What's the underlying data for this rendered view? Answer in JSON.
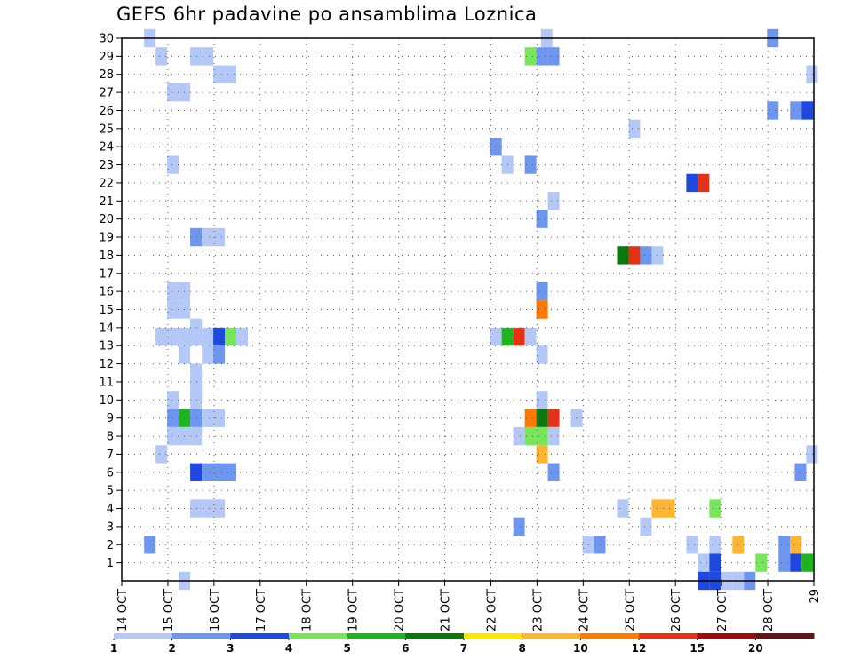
{
  "chart_data": {
    "type": "heatmap",
    "title": "GEFS 6hr padavine po ansamblima Loznica",
    "xlabel": "",
    "ylabel": "",
    "x_ticks": [
      "14 OCT",
      "15 OCT",
      "16 OCT",
      "17 OCT",
      "18 OCT",
      "19 OCT",
      "20 OCT",
      "21 OCT",
      "22 OCT",
      "23 OCT",
      "24 OCT",
      "25 OCT",
      "26 OCT",
      "27 OCT",
      "28 OCT",
      "29"
    ],
    "y_ticks": [
      1,
      2,
      3,
      4,
      5,
      6,
      7,
      8,
      9,
      10,
      11,
      12,
      13,
      14,
      15,
      16,
      17,
      18,
      19,
      20,
      21,
      22,
      23,
      24,
      25,
      26,
      27,
      28,
      29,
      30
    ],
    "xlim": [
      0,
      15
    ],
    "ylim": [
      0,
      30
    ],
    "grid": true,
    "colorbar": {
      "labels": [
        "1",
        "2",
        "3",
        "4",
        "5",
        "6",
        "7",
        "8",
        "10",
        "12",
        "15",
        "20"
      ],
      "colors": [
        "#b4c8f8",
        "#6e96ef",
        "#1e48e0",
        "#78e65a",
        "#1eb41e",
        "#0a780a",
        "#ffe600",
        "#ffb432",
        "#ff7800",
        "#e63214",
        "#a50a0a",
        "#641414"
      ]
    },
    "cells": [
      {
        "x": 0.6,
        "y": 30,
        "v": 1.5
      },
      {
        "x": 14.1,
        "y": 30,
        "v": 2.5
      },
      {
        "x": 9.2,
        "y": 30,
        "v": 1.5
      },
      {
        "x": 0.85,
        "y": 29,
        "v": 1.5
      },
      {
        "x": 1.6,
        "y": 29,
        "v": 1.5
      },
      {
        "x": 1.85,
        "y": 29,
        "v": 1.5
      },
      {
        "x": 8.85,
        "y": 29,
        "v": 4.5
      },
      {
        "x": 9.1,
        "y": 29,
        "v": 2.5
      },
      {
        "x": 9.35,
        "y": 29,
        "v": 2.5
      },
      {
        "x": 2.1,
        "y": 28,
        "v": 1.5
      },
      {
        "x": 2.35,
        "y": 28,
        "v": 1.5
      },
      {
        "x": 14.95,
        "y": 28,
        "v": 1.5
      },
      {
        "x": 1.1,
        "y": 27,
        "v": 1.5
      },
      {
        "x": 1.35,
        "y": 27,
        "v": 1.5
      },
      {
        "x": 14.1,
        "y": 26,
        "v": 2.5
      },
      {
        "x": 14.6,
        "y": 26,
        "v": 2.5
      },
      {
        "x": 14.85,
        "y": 26,
        "v": 3.5
      },
      {
        "x": 11.1,
        "y": 25,
        "v": 1.5
      },
      {
        "x": 8.1,
        "y": 24,
        "v": 2.5
      },
      {
        "x": 1.1,
        "y": 23,
        "v": 1.5
      },
      {
        "x": 8.35,
        "y": 23,
        "v": 1.5
      },
      {
        "x": 8.85,
        "y": 23,
        "v": 2.5
      },
      {
        "x": 12.35,
        "y": 22,
        "v": 3.5
      },
      {
        "x": 12.6,
        "y": 22,
        "v": 13
      },
      {
        "x": 9.35,
        "y": 21,
        "v": 1.5
      },
      {
        "x": 9.1,
        "y": 20,
        "v": 2.5
      },
      {
        "x": 1.6,
        "y": 19,
        "v": 2.5
      },
      {
        "x": 1.85,
        "y": 19,
        "v": 1.5
      },
      {
        "x": 2.1,
        "y": 19,
        "v": 1.5
      },
      {
        "x": 10.85,
        "y": 18,
        "v": 6.5
      },
      {
        "x": 11.1,
        "y": 18,
        "v": 13
      },
      {
        "x": 11.35,
        "y": 18,
        "v": 2.5
      },
      {
        "x": 11.6,
        "y": 18,
        "v": 1.5
      },
      {
        "x": 1.1,
        "y": 16,
        "v": 1.5
      },
      {
        "x": 1.35,
        "y": 16,
        "v": 1.5
      },
      {
        "x": 9.1,
        "y": 16,
        "v": 2.5
      },
      {
        "x": 1.1,
        "y": 15,
        "v": 1.5
      },
      {
        "x": 1.35,
        "y": 15,
        "v": 1.5
      },
      {
        "x": 9.1,
        "y": 15,
        "v": 11
      },
      {
        "x": 1.6,
        "y": 14,
        "v": 1.5
      },
      {
        "x": 0.85,
        "y": 13.5,
        "v": 1.5
      },
      {
        "x": 1.1,
        "y": 13.5,
        "v": 1.5
      },
      {
        "x": 1.35,
        "y": 13.5,
        "v": 1.5
      },
      {
        "x": 1.6,
        "y": 13.5,
        "v": 1.5
      },
      {
        "x": 1.85,
        "y": 13.5,
        "v": 1.5
      },
      {
        "x": 2.1,
        "y": 13.5,
        "v": 3.5
      },
      {
        "x": 2.35,
        "y": 13.5,
        "v": 4.5
      },
      {
        "x": 2.6,
        "y": 13.5,
        "v": 1.5
      },
      {
        "x": 8.1,
        "y": 13.5,
        "v": 1.5
      },
      {
        "x": 8.35,
        "y": 13.5,
        "v": 5.5
      },
      {
        "x": 8.6,
        "y": 13.5,
        "v": 13
      },
      {
        "x": 8.85,
        "y": 13.5,
        "v": 1.5
      },
      {
        "x": 1.35,
        "y": 12.5,
        "v": 1.5
      },
      {
        "x": 1.85,
        "y": 12.5,
        "v": 1.5
      },
      {
        "x": 2.1,
        "y": 12.5,
        "v": 2.5
      },
      {
        "x": 9.1,
        "y": 12.5,
        "v": 1.5
      },
      {
        "x": 1.6,
        "y": 11.5,
        "v": 1.5
      },
      {
        "x": 1.6,
        "y": 10.5,
        "v": 1.5
      },
      {
        "x": 1.1,
        "y": 10,
        "v": 1.5
      },
      {
        "x": 1.6,
        "y": 10,
        "v": 1.5
      },
      {
        "x": 9.1,
        "y": 10,
        "v": 1.5
      },
      {
        "x": 1.1,
        "y": 9,
        "v": 2.5
      },
      {
        "x": 1.35,
        "y": 9,
        "v": 5.5
      },
      {
        "x": 1.6,
        "y": 9,
        "v": 2.5
      },
      {
        "x": 1.85,
        "y": 9,
        "v": 1.5
      },
      {
        "x": 2.1,
        "y": 9,
        "v": 1.5
      },
      {
        "x": 8.85,
        "y": 9,
        "v": 11
      },
      {
        "x": 9.1,
        "y": 9,
        "v": 6.5
      },
      {
        "x": 9.35,
        "y": 9,
        "v": 13
      },
      {
        "x": 9.85,
        "y": 9,
        "v": 1.5
      },
      {
        "x": 1.1,
        "y": 8,
        "v": 1.5
      },
      {
        "x": 1.35,
        "y": 8,
        "v": 1.5
      },
      {
        "x": 1.6,
        "y": 8,
        "v": 1.5
      },
      {
        "x": 8.6,
        "y": 8,
        "v": 1.5
      },
      {
        "x": 8.85,
        "y": 8,
        "v": 4.5
      },
      {
        "x": 9.1,
        "y": 8,
        "v": 4.5
      },
      {
        "x": 9.35,
        "y": 8,
        "v": 1.5
      },
      {
        "x": 0.85,
        "y": 7,
        "v": 1.5
      },
      {
        "x": 9.1,
        "y": 7,
        "v": 9
      },
      {
        "x": 14.95,
        "y": 7,
        "v": 1.5
      },
      {
        "x": 1.6,
        "y": 6,
        "v": 3.5
      },
      {
        "x": 1.85,
        "y": 6,
        "v": 2.5
      },
      {
        "x": 2.1,
        "y": 6,
        "v": 2.5
      },
      {
        "x": 2.35,
        "y": 6,
        "v": 2.5
      },
      {
        "x": 9.35,
        "y": 6,
        "v": 2.5
      },
      {
        "x": 14.7,
        "y": 6,
        "v": 2.5
      },
      {
        "x": 1.6,
        "y": 4,
        "v": 1.5
      },
      {
        "x": 1.85,
        "y": 4,
        "v": 1.5
      },
      {
        "x": 2.1,
        "y": 4,
        "v": 1.5
      },
      {
        "x": 10.85,
        "y": 4,
        "v": 1.5
      },
      {
        "x": 11.6,
        "y": 4,
        "v": 9
      },
      {
        "x": 11.85,
        "y": 4,
        "v": 9
      },
      {
        "x": 12.85,
        "y": 4,
        "v": 4.5
      },
      {
        "x": 8.6,
        "y": 3,
        "v": 2.5
      },
      {
        "x": 11.35,
        "y": 3,
        "v": 1.5
      },
      {
        "x": 0.6,
        "y": 2,
        "v": 2.5
      },
      {
        "x": 10.1,
        "y": 2,
        "v": 1.5
      },
      {
        "x": 10.35,
        "y": 2,
        "v": 2.5
      },
      {
        "x": 12.35,
        "y": 2,
        "v": 1.5
      },
      {
        "x": 12.85,
        "y": 2,
        "v": 1.5
      },
      {
        "x": 13.35,
        "y": 2,
        "v": 9
      },
      {
        "x": 14.35,
        "y": 2,
        "v": 2.5
      },
      {
        "x": 14.6,
        "y": 2,
        "v": 9
      },
      {
        "x": 12.6,
        "y": 1,
        "v": 1.5
      },
      {
        "x": 12.85,
        "y": 1,
        "v": 3.5
      },
      {
        "x": 13.85,
        "y": 1,
        "v": 4.5
      },
      {
        "x": 14.35,
        "y": 1,
        "v": 2.5
      },
      {
        "x": 14.6,
        "y": 1,
        "v": 3.5
      },
      {
        "x": 14.85,
        "y": 1,
        "v": 5.5
      },
      {
        "x": 12.6,
        "y": 0,
        "v": 3.5
      },
      {
        "x": 12.85,
        "y": 0,
        "v": 3.5
      },
      {
        "x": 13.1,
        "y": 0,
        "v": 1.5
      },
      {
        "x": 13.35,
        "y": 0,
        "v": 1.5
      },
      {
        "x": 13.6,
        "y": 0,
        "v": 2.5
      },
      {
        "x": 1.35,
        "y": 0,
        "v": 1.5
      }
    ]
  }
}
